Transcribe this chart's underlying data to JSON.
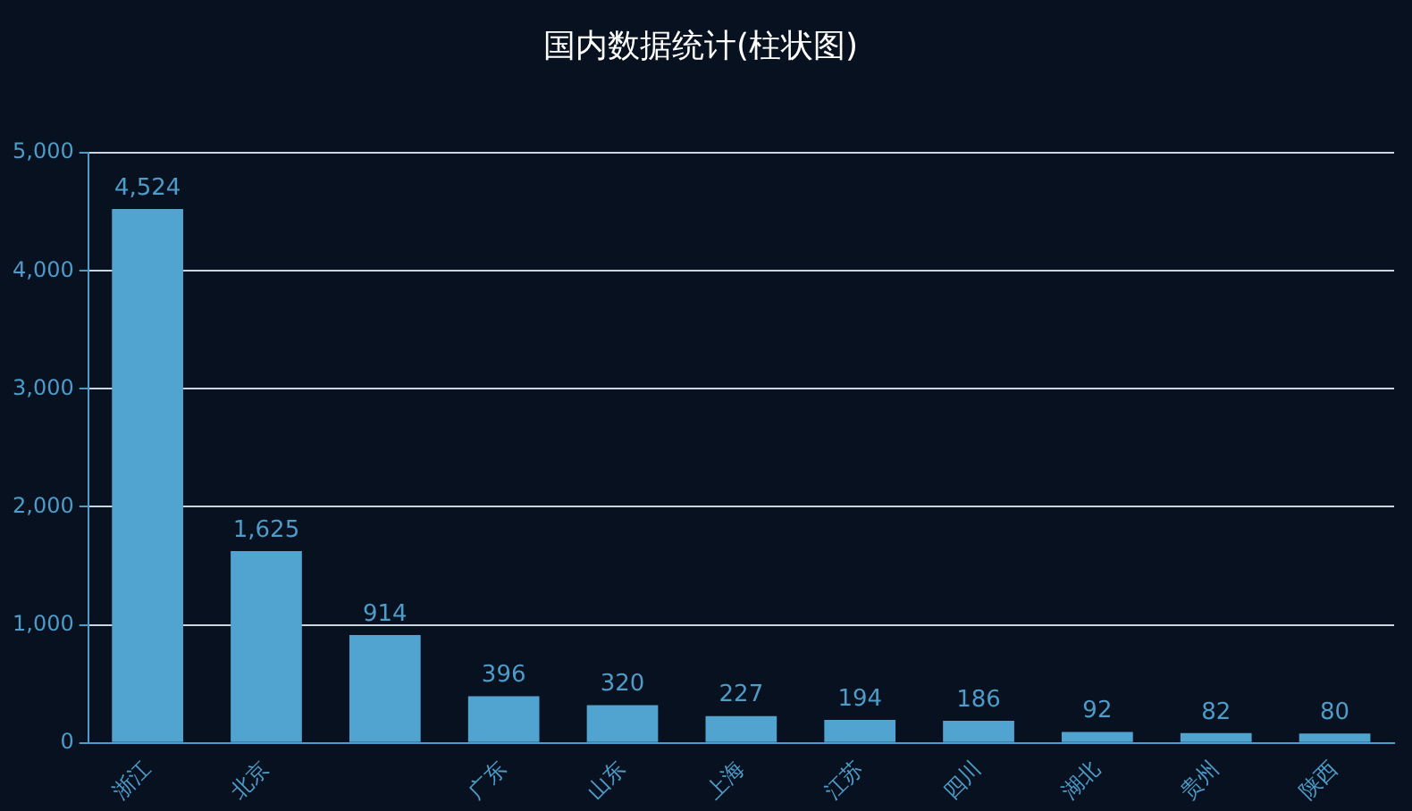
{
  "chart_data": {
    "type": "bar",
    "title": "国内数据统计(柱状图)",
    "categories": [
      "浙江",
      "北京",
      null,
      "广东",
      "山东",
      "上海",
      "江苏",
      "四川",
      "湖北",
      "贵州",
      "陕西"
    ],
    "values": [
      4524,
      1625,
      914,
      396,
      320,
      227,
      194,
      186,
      92,
      82,
      80
    ],
    "value_labels": [
      "4,524",
      "1,625",
      "914",
      "396",
      "320",
      "227",
      "194",
      "186",
      "92",
      "82",
      "80"
    ],
    "color": "#51a4cf",
    "ylim": [
      0,
      5000
    ],
    "yticks": [
      {
        "value": 0,
        "label": "0"
      },
      {
        "value": 1000,
        "label": "1,000"
      },
      {
        "value": 2000,
        "label": "2,000"
      },
      {
        "value": 3000,
        "label": "3,000"
      },
      {
        "value": 4000,
        "label": "4,000"
      },
      {
        "value": 5000,
        "label": "5,000"
      }
    ],
    "grid": "y"
  }
}
